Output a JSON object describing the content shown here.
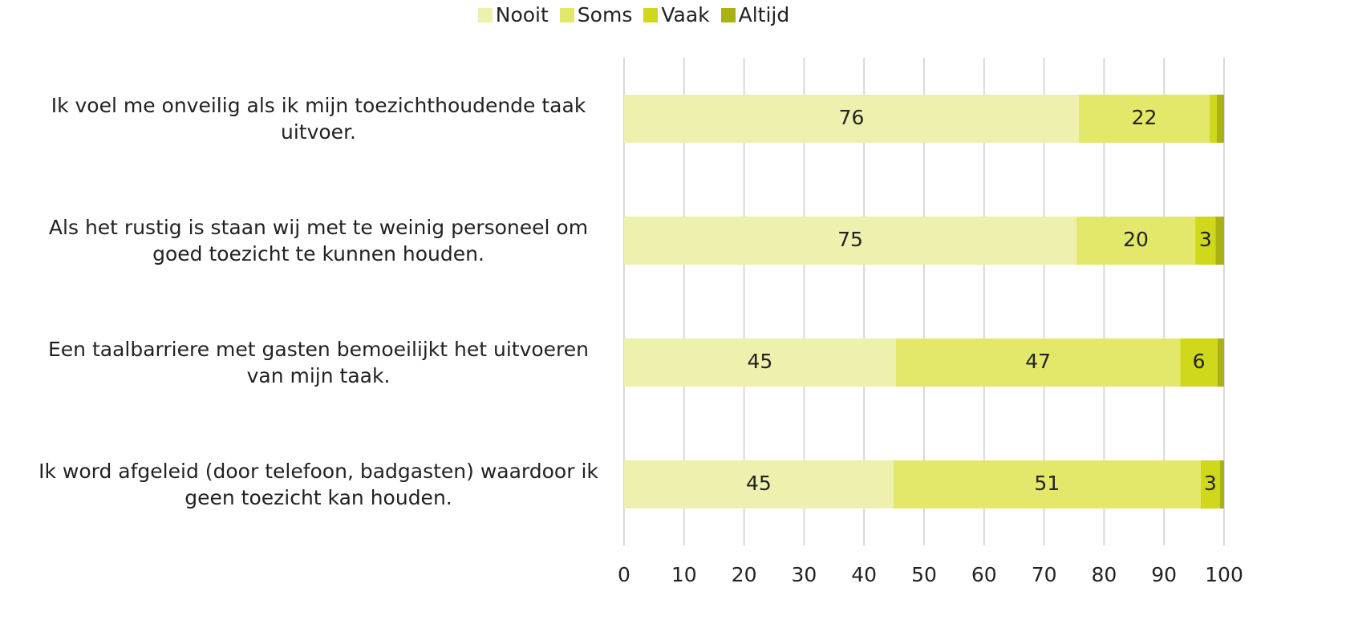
{
  "chart_data": {
    "type": "stacked-bar-horizontal",
    "categories": [
      "Ik voel me onveilig als ik mijn toezichthoudende taak uitvoer.",
      "Als het rustig is staan wij met te weinig personeel om goed toezicht te kunnen houden.",
      "Een taalbarriere met gasten bemoeilijkt het uitvoeren van mijn taak.",
      "Ik word afgeleid (door telefoon, badgasten) waardoor ik geen toezicht kan houden."
    ],
    "series": [
      {
        "name": "Nooit",
        "color": "#eef1ae",
        "values": [
          75.8,
          75.4,
          45.3,
          44.9
        ],
        "value_labels": [
          "76",
          "75",
          "45",
          "45"
        ]
      },
      {
        "name": "Soms",
        "color": "#e4e86a",
        "values": [
          21.8,
          19.8,
          47.4,
          51.2
        ],
        "value_labels": [
          "22",
          "20",
          "47",
          "51"
        ]
      },
      {
        "name": "Vaak",
        "color": "#d0d81c",
        "values": [
          1.2,
          3.4,
          6.2,
          3.2
        ],
        "value_labels": [
          null,
          "3",
          "6",
          "3"
        ]
      },
      {
        "name": "Altijd",
        "color": "#a9b113",
        "values": [
          1.2,
          1.4,
          1.1,
          0.7
        ],
        "value_labels": [
          null,
          null,
          null,
          null
        ]
      }
    ],
    "xlim": [
      0,
      100
    ],
    "xticks": [
      0,
      10,
      20,
      30,
      40,
      50,
      60,
      70,
      80,
      90,
      100
    ],
    "grid": true,
    "legend": "top"
  }
}
